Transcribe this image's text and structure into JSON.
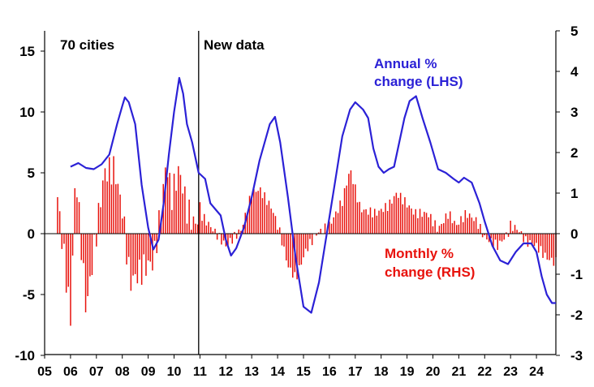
{
  "chart_data": {
    "type": "bar+line",
    "title": "",
    "xlabel": "",
    "ylabel_left": "",
    "ylabel_right": "",
    "left_axis": {
      "min": -10,
      "max": 17,
      "ticks": [
        -10,
        -5,
        0,
        5,
        10,
        15
      ]
    },
    "right_axis": {
      "min": -3,
      "max": 5,
      "ticks": [
        -3,
        -2,
        -1,
        0,
        1,
        2,
        3,
        4,
        5
      ]
    },
    "x_axis": {
      "min": 2005,
      "max": 2024.75,
      "tick_years": [
        2005,
        2006,
        2007,
        2008,
        2009,
        2010,
        2011,
        2012,
        2013,
        2014,
        2015,
        2016,
        2017,
        2018,
        2019,
        2020,
        2021,
        2022,
        2023,
        2024
      ],
      "tick_labels": [
        "05",
        "06",
        "07",
        "08",
        "09",
        "10",
        "11",
        "12",
        "13",
        "14",
        "15",
        "16",
        "17",
        "18",
        "19",
        "20",
        "21",
        "22",
        "23",
        "24"
      ]
    },
    "annotations": {
      "cities": "70 cities",
      "new_data": "New data",
      "annual_line1": "Annual %",
      "annual_line2": "change (LHS)",
      "monthly_line1": "Monthly %",
      "monthly_line2": "change (RHS)"
    },
    "divider_year": 2010.95,
    "series": [
      {
        "name": "Annual % change (LHS)",
        "axis": "left",
        "color": "#2b21d6",
        "points": [
          [
            2006.0,
            5.5
          ],
          [
            2006.3,
            5.8
          ],
          [
            2006.6,
            5.4
          ],
          [
            2006.9,
            5.3
          ],
          [
            2007.2,
            5.7
          ],
          [
            2007.5,
            6.5
          ],
          [
            2007.8,
            9.0
          ],
          [
            2008.0,
            10.5
          ],
          [
            2008.1,
            11.2
          ],
          [
            2008.25,
            10.8
          ],
          [
            2008.5,
            9.0
          ],
          [
            2008.75,
            4.0
          ],
          [
            2009.0,
            0.5
          ],
          [
            2009.2,
            -1.3
          ],
          [
            2009.4,
            -0.5
          ],
          [
            2009.6,
            2.5
          ],
          [
            2009.8,
            6.5
          ],
          [
            2010.0,
            10.0
          ],
          [
            2010.2,
            12.8
          ],
          [
            2010.35,
            11.5
          ],
          [
            2010.5,
            9.0
          ],
          [
            2010.7,
            7.5
          ],
          [
            2010.95,
            5.0
          ],
          [
            2011.2,
            4.5
          ],
          [
            2011.4,
            2.5
          ],
          [
            2011.6,
            2.0
          ],
          [
            2011.8,
            1.5
          ],
          [
            2012.0,
            -0.5
          ],
          [
            2012.2,
            -1.8
          ],
          [
            2012.4,
            -1.2
          ],
          [
            2012.7,
            0.5
          ],
          [
            2013.0,
            3.0
          ],
          [
            2013.3,
            6.0
          ],
          [
            2013.7,
            9.0
          ],
          [
            2013.9,
            9.6
          ],
          [
            2014.1,
            7.5
          ],
          [
            2014.4,
            3.0
          ],
          [
            2014.7,
            -2.0
          ],
          [
            2015.0,
            -6.0
          ],
          [
            2015.3,
            -6.5
          ],
          [
            2015.6,
            -4.0
          ],
          [
            2015.9,
            0.0
          ],
          [
            2016.2,
            4.0
          ],
          [
            2016.5,
            8.0
          ],
          [
            2016.8,
            10.2
          ],
          [
            2017.0,
            10.8
          ],
          [
            2017.3,
            10.2
          ],
          [
            2017.5,
            9.5
          ],
          [
            2017.7,
            7.0
          ],
          [
            2017.9,
            5.5
          ],
          [
            2018.1,
            5.0
          ],
          [
            2018.3,
            5.3
          ],
          [
            2018.5,
            5.5
          ],
          [
            2018.7,
            7.5
          ],
          [
            2018.9,
            9.5
          ],
          [
            2019.1,
            10.9
          ],
          [
            2019.35,
            11.3
          ],
          [
            2019.6,
            9.5
          ],
          [
            2019.9,
            7.5
          ],
          [
            2020.2,
            5.3
          ],
          [
            2020.5,
            5.0
          ],
          [
            2020.8,
            4.5
          ],
          [
            2021.0,
            4.2
          ],
          [
            2021.2,
            4.6
          ],
          [
            2021.5,
            4.2
          ],
          [
            2021.8,
            2.5
          ],
          [
            2022.0,
            1.0
          ],
          [
            2022.3,
            -1.0
          ],
          [
            2022.6,
            -2.2
          ],
          [
            2022.9,
            -2.5
          ],
          [
            2023.2,
            -1.5
          ],
          [
            2023.5,
            -0.8
          ],
          [
            2023.8,
            -0.8
          ],
          [
            2024.0,
            -1.5
          ],
          [
            2024.2,
            -3.5
          ],
          [
            2024.4,
            -5.0
          ],
          [
            2024.6,
            -5.7
          ],
          [
            2024.75,
            -5.7
          ]
        ]
      },
      {
        "name": "Monthly % change (RHS)",
        "axis": "right",
        "color": "#e8120c",
        "key_points": [
          [
            2005.5,
            0.9
          ],
          [
            2006.0,
            -2.1
          ],
          [
            2006.2,
            1.6
          ],
          [
            2006.6,
            -1.9
          ],
          [
            2007.3,
            1.5
          ],
          [
            2007.7,
            1.6
          ],
          [
            2008.0,
            0.6
          ],
          [
            2008.3,
            -1.2
          ],
          [
            2008.9,
            -0.8
          ],
          [
            2009.2,
            -0.7
          ],
          [
            2009.5,
            0.6
          ],
          [
            2009.7,
            1.8
          ],
          [
            2009.9,
            0.9
          ],
          [
            2010.2,
            1.6
          ],
          [
            2010.5,
            0.6
          ],
          [
            2010.8,
            0.2
          ],
          [
            2011.0,
            0.5
          ],
          [
            2011.5,
            0.1
          ],
          [
            2012.0,
            -0.3
          ],
          [
            2012.6,
            0.1
          ],
          [
            2013.0,
            1.0
          ],
          [
            2013.3,
            1.1
          ],
          [
            2013.8,
            0.6
          ],
          [
            2014.1,
            0.0
          ],
          [
            2014.4,
            -0.8
          ],
          [
            2014.7,
            -1.1
          ],
          [
            2015.1,
            -0.4
          ],
          [
            2015.5,
            0.0
          ],
          [
            2016.0,
            0.2
          ],
          [
            2016.5,
            0.8
          ],
          [
            2016.8,
            1.6
          ],
          [
            2017.2,
            0.6
          ],
          [
            2017.8,
            0.5
          ],
          [
            2018.3,
            0.7
          ],
          [
            2018.6,
            1.0
          ],
          [
            2018.9,
            0.8
          ],
          [
            2019.3,
            0.5
          ],
          [
            2019.8,
            0.5
          ],
          [
            2020.2,
            0.1
          ],
          [
            2020.6,
            0.5
          ],
          [
            2020.9,
            0.2
          ],
          [
            2021.3,
            0.5
          ],
          [
            2021.7,
            0.3
          ],
          [
            2022.0,
            -0.1
          ],
          [
            2022.5,
            -0.3
          ],
          [
            2022.9,
            0.0
          ],
          [
            2023.0,
            0.2
          ],
          [
            2023.3,
            0.1
          ],
          [
            2023.6,
            -0.2
          ],
          [
            2024.0,
            -0.3
          ],
          [
            2024.4,
            -0.6
          ],
          [
            2024.7,
            -0.7
          ]
        ]
      }
    ]
  }
}
